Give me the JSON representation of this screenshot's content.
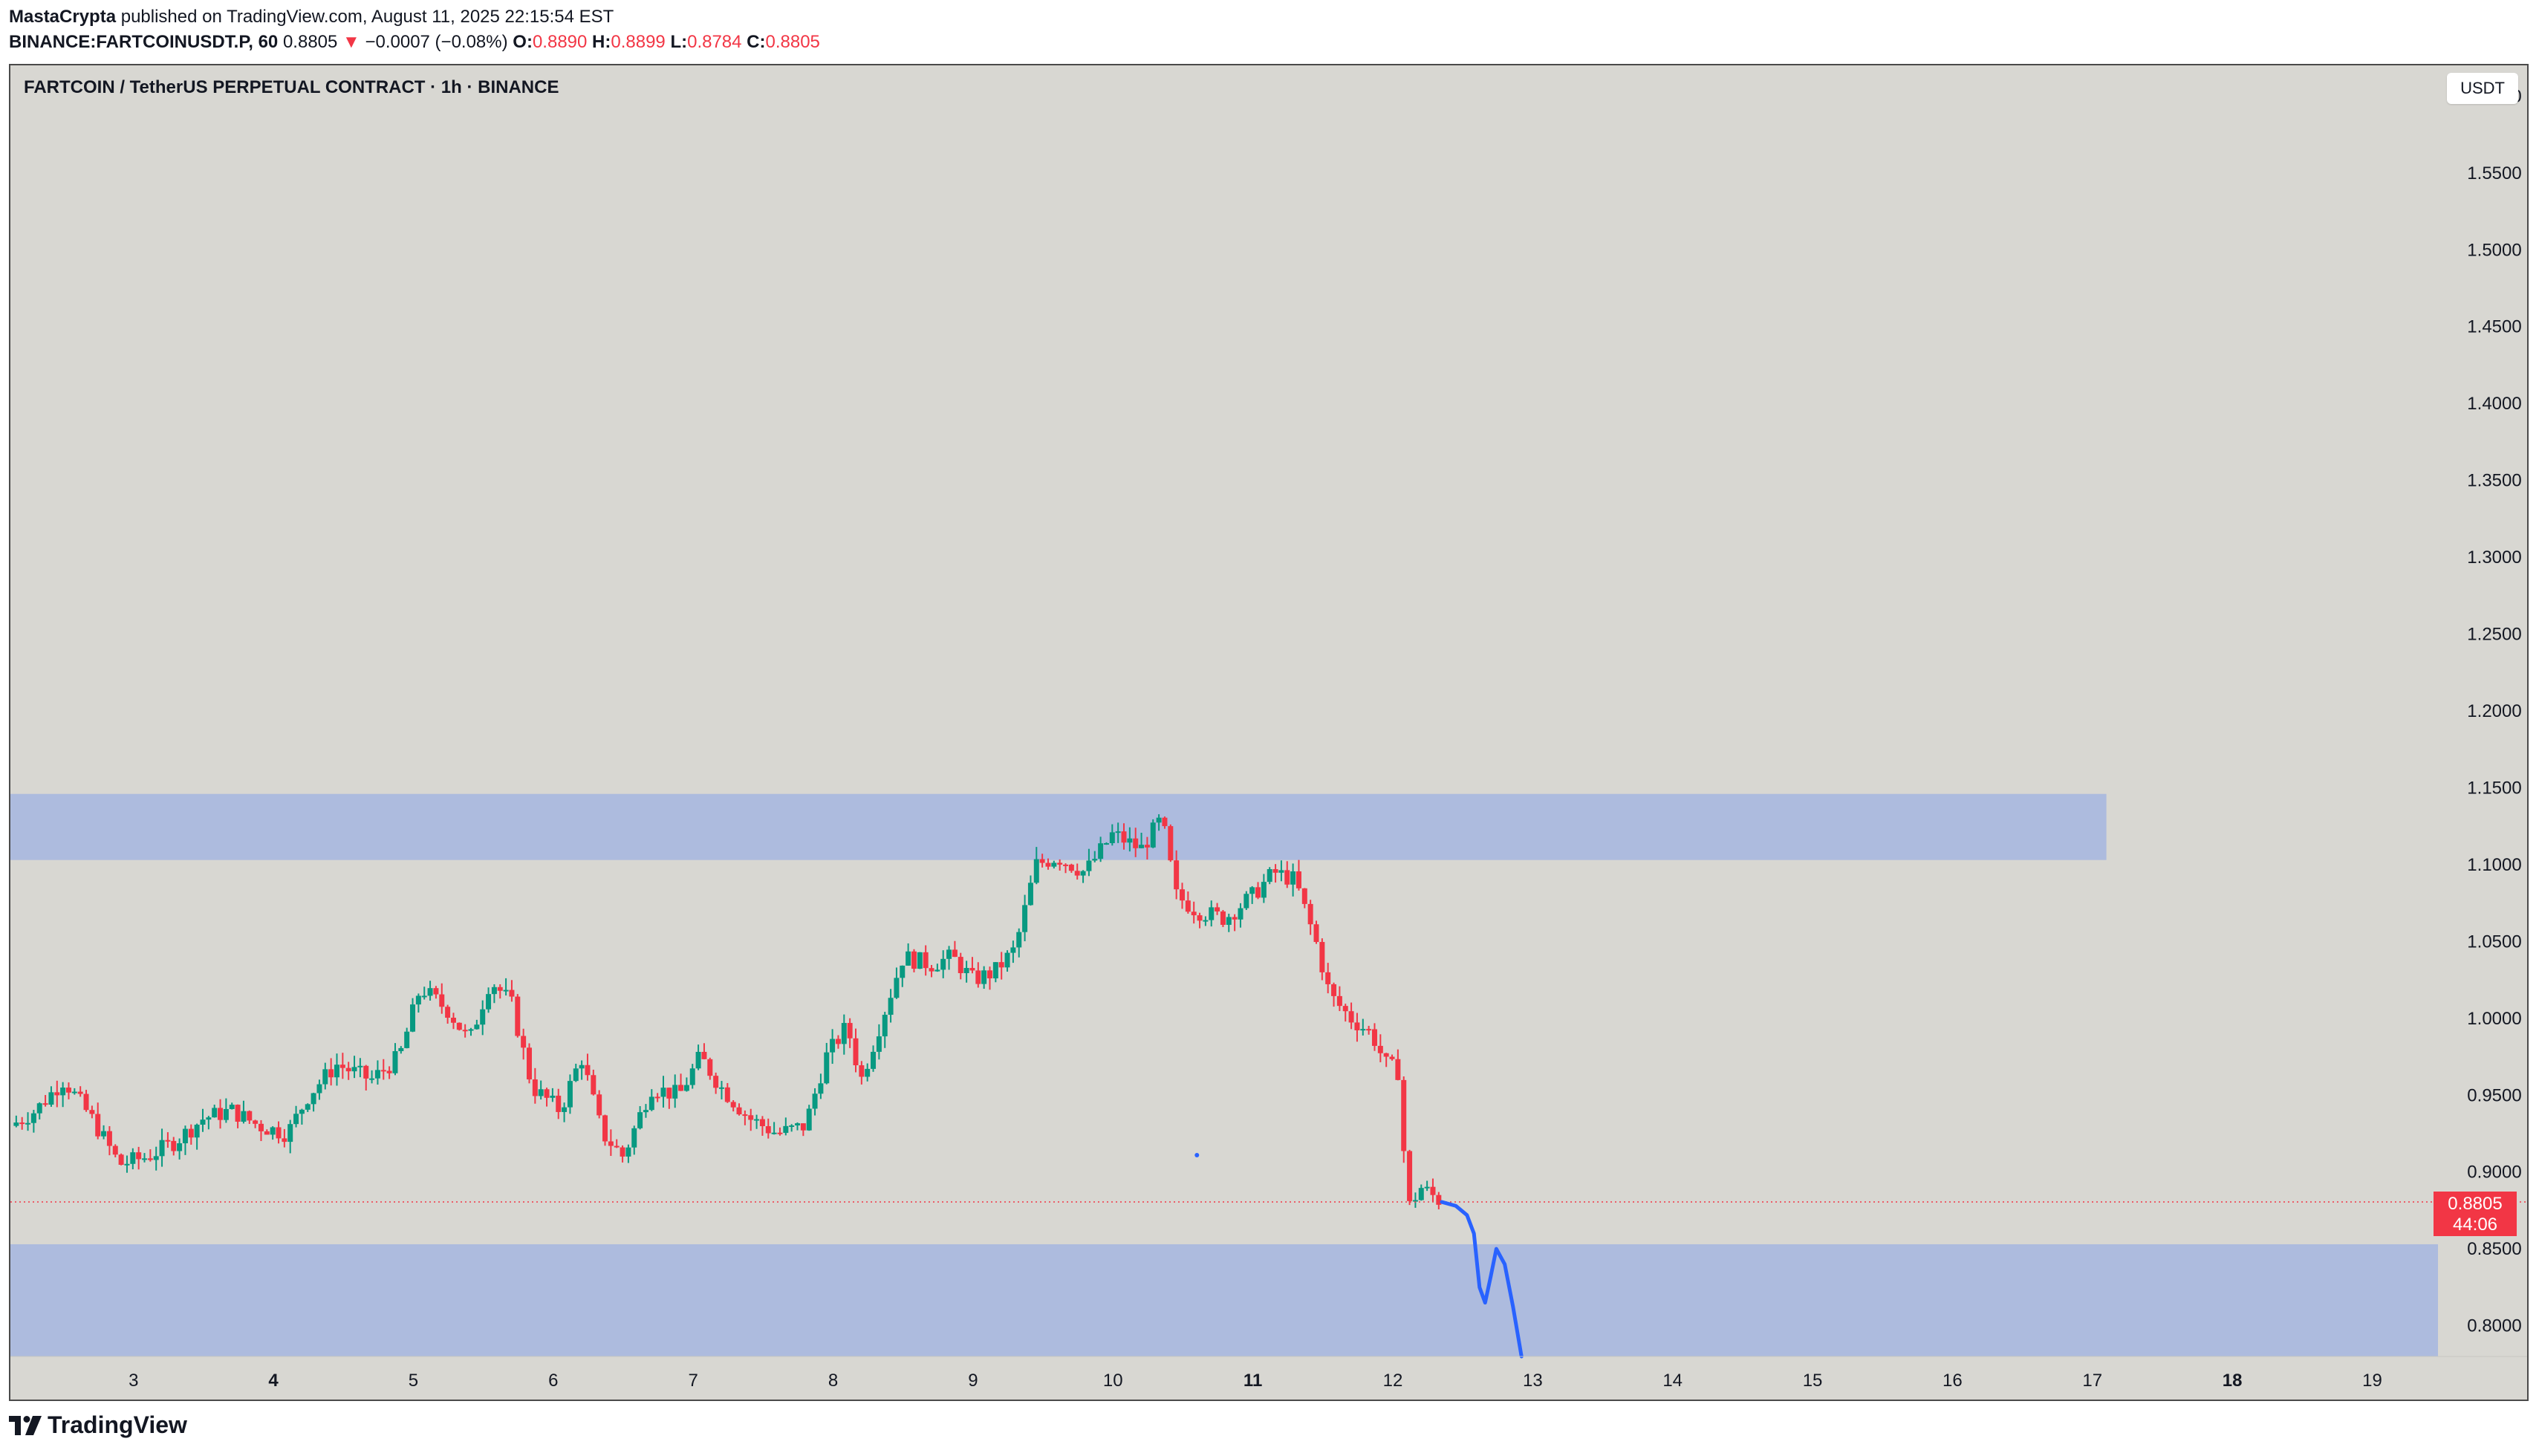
{
  "header": {
    "author": "MastaCrypta",
    "published": "published on TradingView.com, August 11, 2025 22:15:54 EST",
    "symbol": "BINANCE:FARTCOINUSDT.P, 60",
    "last": "0.8805",
    "change_arrow": "▼",
    "change": "−0.0007 (−0.08%)",
    "o_label": "O:",
    "o_value": "0.8890",
    "h_label": "H:",
    "h_value": "0.8899",
    "l_label": "L:",
    "l_value": "0.8784",
    "c_label": "C:",
    "c_value": "0.8805"
  },
  "chart_title": "FARTCOIN / TetherUS PERPETUAL CONTRACT · 1h · BINANCE",
  "currency": "USDT",
  "price_tag": {
    "price": "0.8805",
    "countdown": "44:06"
  },
  "footer": {
    "brand": "TradingView",
    "logo_icon": "tradingview-logo-icon"
  },
  "colors": {
    "background": "#d8d7d2",
    "up": "#089981",
    "down": "#f23645",
    "zone": "#a9b8de",
    "projection": "#2962ff"
  },
  "chart_data": {
    "type": "candlestick",
    "title": "FARTCOIN / TetherUS PERPETUAL CONTRACT · 1h · BINANCE",
    "y_axis": {
      "ticks": [
        "1.6000",
        "1.5500",
        "1.5000",
        "1.4500",
        "1.4000",
        "1.3500",
        "1.3000",
        "1.2500",
        "1.2000",
        "1.1500",
        "1.1000",
        "1.0500",
        "1.0000",
        "0.9500",
        "0.9000",
        "0.8500",
        "0.8000"
      ],
      "range": [
        0.78,
        1.62
      ],
      "position": "right"
    },
    "x_axis": {
      "ticks": [
        {
          "label": "3",
          "day": 3,
          "bold": false
        },
        {
          "label": "4",
          "day": 4,
          "bold": true
        },
        {
          "label": "5",
          "day": 5,
          "bold": false
        },
        {
          "label": "6",
          "day": 6,
          "bold": false
        },
        {
          "label": "7",
          "day": 7,
          "bold": false
        },
        {
          "label": "8",
          "day": 8,
          "bold": false
        },
        {
          "label": "9",
          "day": 9,
          "bold": false
        },
        {
          "label": "10",
          "day": 10,
          "bold": false
        },
        {
          "label": "11",
          "day": 11,
          "bold": true
        },
        {
          "label": "12",
          "day": 12,
          "bold": false
        },
        {
          "label": "13",
          "day": 13,
          "bold": false
        },
        {
          "label": "14",
          "day": 14,
          "bold": false
        },
        {
          "label": "15",
          "day": 15,
          "bold": false
        },
        {
          "label": "16",
          "day": 16,
          "bold": false
        },
        {
          "label": "17",
          "day": 17,
          "bold": false
        },
        {
          "label": "18",
          "day": 18,
          "bold": true
        },
        {
          "label": "19",
          "day": 19,
          "bold": false
        }
      ],
      "range": [
        2.12,
        19.47
      ]
    },
    "last_price": 0.8805,
    "zones": [
      {
        "from_day": 2.12,
        "to_day": 17.1,
        "low": 1.103,
        "high": 1.146
      },
      {
        "from_day": 2.12,
        "to_day": 19.47,
        "low": 0.78,
        "high": 0.853
      }
    ],
    "price_path": [
      [
        2.12,
        0.93
      ],
      [
        2.3,
        0.94
      ],
      [
        2.5,
        0.96
      ],
      [
        2.7,
        0.935
      ],
      [
        2.9,
        0.905
      ],
      [
        3.1,
        0.91
      ],
      [
        3.3,
        0.92
      ],
      [
        3.5,
        0.935
      ],
      [
        3.7,
        0.94
      ],
      [
        3.9,
        0.93
      ],
      [
        4.1,
        0.925
      ],
      [
        4.25,
        0.95
      ],
      [
        4.45,
        0.97
      ],
      [
        4.7,
        0.96
      ],
      [
        4.9,
        0.975
      ],
      [
        5.05,
        1.02
      ],
      [
        5.25,
        1.005
      ],
      [
        5.4,
        0.985
      ],
      [
        5.55,
        1.025
      ],
      [
        5.7,
        1.01
      ],
      [
        5.85,
        0.955
      ],
      [
        6.05,
        0.94
      ],
      [
        6.2,
        0.975
      ],
      [
        6.35,
        0.925
      ],
      [
        6.5,
        0.91
      ],
      [
        6.7,
        0.955
      ],
      [
        6.9,
        0.95
      ],
      [
        7.05,
        0.975
      ],
      [
        7.2,
        0.955
      ],
      [
        7.4,
        0.935
      ],
      [
        7.6,
        0.925
      ],
      [
        7.8,
        0.93
      ],
      [
        7.95,
        0.975
      ],
      [
        8.1,
        0.995
      ],
      [
        8.2,
        0.96
      ],
      [
        8.35,
        1.0
      ],
      [
        8.5,
        1.04
      ],
      [
        8.7,
        1.035
      ],
      [
        8.85,
        1.04
      ],
      [
        9.0,
        1.025
      ],
      [
        9.15,
        1.03
      ],
      [
        9.3,
        1.045
      ],
      [
        9.45,
        1.1
      ],
      [
        9.6,
        1.105
      ],
      [
        9.8,
        1.095
      ],
      [
        10.0,
        1.12
      ],
      [
        10.2,
        1.11
      ],
      [
        10.35,
        1.13
      ],
      [
        10.45,
        1.08
      ],
      [
        10.6,
        1.07
      ],
      [
        10.8,
        1.065
      ],
      [
        11.0,
        1.08
      ],
      [
        11.15,
        1.095
      ],
      [
        11.3,
        1.09
      ],
      [
        11.45,
        1.05
      ],
      [
        11.55,
        1.015
      ],
      [
        11.7,
        1.0
      ],
      [
        11.85,
        0.99
      ],
      [
        11.95,
        0.97
      ],
      [
        12.05,
        0.965
      ],
      [
        12.1,
        0.875
      ],
      [
        12.2,
        0.89
      ],
      [
        12.35,
        0.8805
      ]
    ],
    "projection_path": [
      [
        12.35,
        0.8805
      ],
      [
        12.45,
        0.878
      ],
      [
        12.53,
        0.872
      ],
      [
        12.58,
        0.86
      ],
      [
        12.62,
        0.825
      ],
      [
        12.66,
        0.815
      ],
      [
        12.7,
        0.832
      ],
      [
        12.74,
        0.85
      ],
      [
        12.8,
        0.84
      ],
      [
        12.86,
        0.812
      ],
      [
        12.92,
        0.78
      ]
    ],
    "grid": false,
    "legend": "none"
  }
}
